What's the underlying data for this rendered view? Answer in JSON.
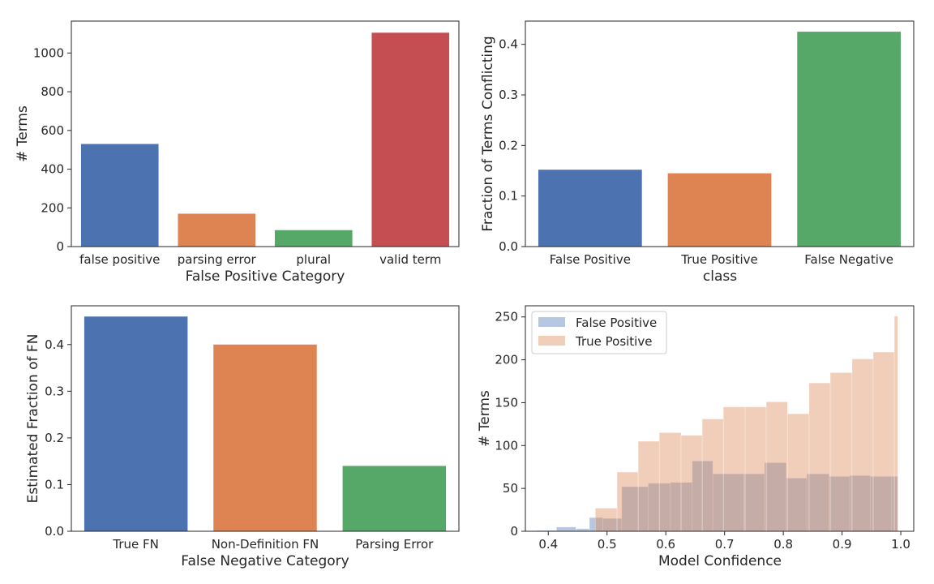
{
  "chart_data": [
    {
      "type": "bar",
      "xlabel": "False Positive Category",
      "ylabel": "# Terms",
      "categories": [
        "false positive",
        "parsing error",
        "plural",
        "valid term"
      ],
      "values": [
        530,
        170,
        85,
        1105
      ],
      "colors": [
        "#4c72b0",
        "#dd8452",
        "#55a868",
        "#c44e52"
      ],
      "ylim": [
        0,
        1165
      ],
      "yticks": [
        0,
        200,
        400,
        600,
        800,
        1000
      ],
      "grid": false
    },
    {
      "type": "bar",
      "xlabel": "class",
      "ylabel": "Fraction of Terms Conflicting",
      "categories": [
        "False Positive",
        "True Positive",
        "False Negative"
      ],
      "values": [
        0.152,
        0.145,
        0.425
      ],
      "colors": [
        "#4c72b0",
        "#dd8452",
        "#55a868"
      ],
      "ylim": [
        0,
        0.446
      ],
      "yticks": [
        "0.0",
        "0.1",
        "0.2",
        "0.3",
        "0.4"
      ],
      "grid": false
    },
    {
      "type": "bar",
      "xlabel": "False Negative Category",
      "ylabel": "Estimated Fraction of FN",
      "categories": [
        "True FN",
        "Non-Definition FN",
        "Parsing Error"
      ],
      "values": [
        0.46,
        0.4,
        0.14
      ],
      "colors": [
        "#4c72b0",
        "#dd8452",
        "#55a868"
      ],
      "ylim": [
        0,
        0.483
      ],
      "yticks": [
        "0.0",
        "0.1",
        "0.2",
        "0.3",
        "0.4"
      ],
      "grid": false
    },
    {
      "type": "histogram",
      "xlabel": "Model Confidence",
      "ylabel": "# Terms",
      "xlim": [
        0.361,
        1.022
      ],
      "ylim": [
        0,
        263
      ],
      "xticks": [
        "0.4",
        "0.5",
        "0.6",
        "0.7",
        "0.8",
        "0.9",
        "1.0"
      ],
      "yticks": [
        0,
        50,
        100,
        150,
        200,
        250
      ],
      "legend_position": "upper-left",
      "grid": false,
      "series": [
        {
          "name": "False Positive",
          "color": "#4c72b0",
          "opacity": 0.4,
          "bins": [
            [
              0.381,
              0.414,
              1
            ],
            [
              0.414,
              0.447,
              5
            ],
            [
              0.447,
              0.47,
              3
            ],
            [
              0.47,
              0.493,
              16
            ],
            [
              0.493,
              0.525,
              15
            ],
            [
              0.525,
              0.57,
              52
            ],
            [
              0.57,
              0.608,
              56
            ],
            [
              0.608,
              0.645,
              57
            ],
            [
              0.645,
              0.68,
              82
            ],
            [
              0.68,
              0.733,
              67
            ],
            [
              0.733,
              0.768,
              67
            ],
            [
              0.768,
              0.805,
              80
            ],
            [
              0.805,
              0.84,
              62
            ],
            [
              0.84,
              0.878,
              67
            ],
            [
              0.878,
              0.913,
              64
            ],
            [
              0.913,
              0.948,
              65
            ],
            [
              0.948,
              0.984,
              64
            ],
            [
              0.984,
              0.995,
              64
            ]
          ]
        },
        {
          "name": "True Positive",
          "color": "#dd8452",
          "opacity": 0.4,
          "bins": [
            [
              0.48,
              0.517,
              27
            ],
            [
              0.517,
              0.553,
              69
            ],
            [
              0.553,
              0.589,
              105
            ],
            [
              0.589,
              0.626,
              115
            ],
            [
              0.626,
              0.662,
              112
            ],
            [
              0.662,
              0.698,
              131
            ],
            [
              0.698,
              0.735,
              145
            ],
            [
              0.735,
              0.771,
              145
            ],
            [
              0.771,
              0.807,
              151
            ],
            [
              0.807,
              0.844,
              137
            ],
            [
              0.844,
              0.88,
              173
            ],
            [
              0.88,
              0.917,
              185
            ],
            [
              0.917,
              0.953,
              201
            ],
            [
              0.953,
              0.989,
              209
            ],
            [
              0.989,
              0.995,
              251
            ]
          ]
        }
      ]
    }
  ]
}
